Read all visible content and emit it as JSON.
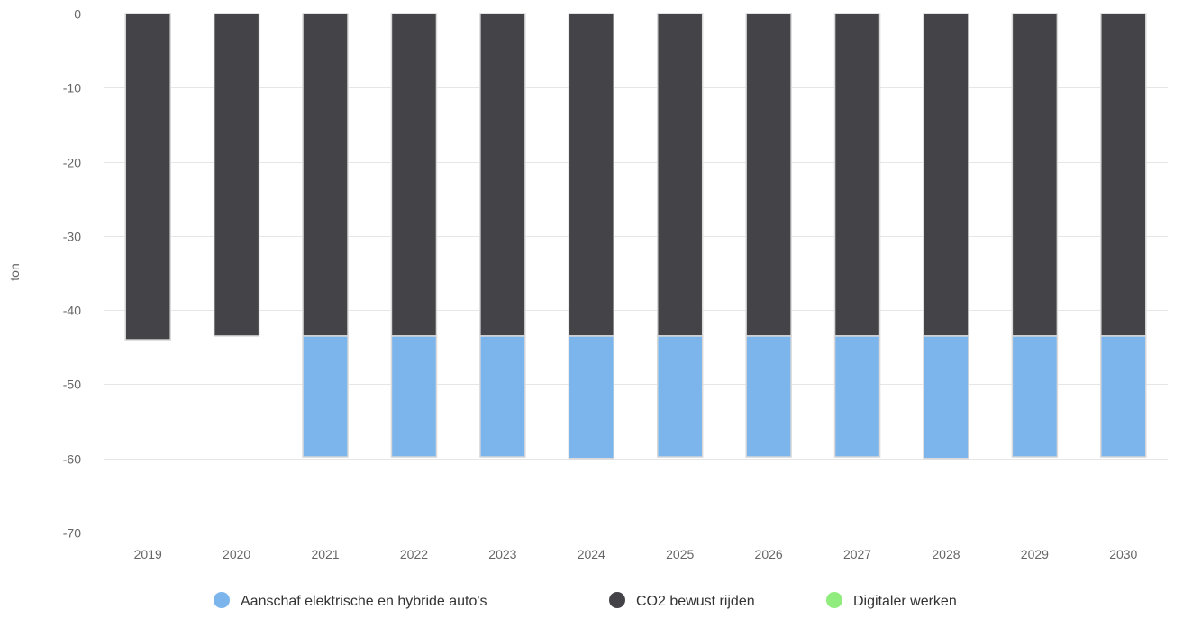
{
  "chart_data": {
    "type": "bar",
    "stacked": true,
    "ylabel": "ton",
    "xlabel": "",
    "ylim": [
      -70,
      0
    ],
    "yticks": [
      0,
      -10,
      -20,
      -30,
      -40,
      -50,
      -60,
      -70
    ],
    "grid": true,
    "legend_position": "bottom",
    "categories": [
      "2019",
      "2020",
      "2021",
      "2022",
      "2023",
      "2024",
      "2025",
      "2026",
      "2027",
      "2028",
      "2029",
      "2030"
    ],
    "series": [
      {
        "name": "CO2 bewust rijden",
        "color": "#434348",
        "values": [
          -44,
          -43.5,
          -43.5,
          -43.5,
          -43.5,
          -43.5,
          -43.5,
          -43.5,
          -43.5,
          -43.5,
          -43.5,
          -43.5
        ]
      },
      {
        "name": "Aanschaf elektrische en hybride auto's",
        "color": "#7cb5ec",
        "values": [
          0,
          0,
          -16.3,
          -16.3,
          -16.3,
          -16.5,
          -16.3,
          -16.3,
          -16.3,
          -16.5,
          -16.3,
          -16.3
        ]
      },
      {
        "name": "Digitaler werken",
        "color": "#90ed7d",
        "values": [
          0,
          0,
          0,
          0,
          0,
          0,
          0,
          0,
          0,
          0,
          0,
          0
        ]
      }
    ],
    "legend": [
      {
        "name": "Aanschaf elektrische en hybride auto's",
        "color": "#7cb5ec"
      },
      {
        "name": "CO2 bewust rijden",
        "color": "#434348"
      },
      {
        "name": "Digitaler werken",
        "color": "#90ed7d"
      }
    ]
  }
}
